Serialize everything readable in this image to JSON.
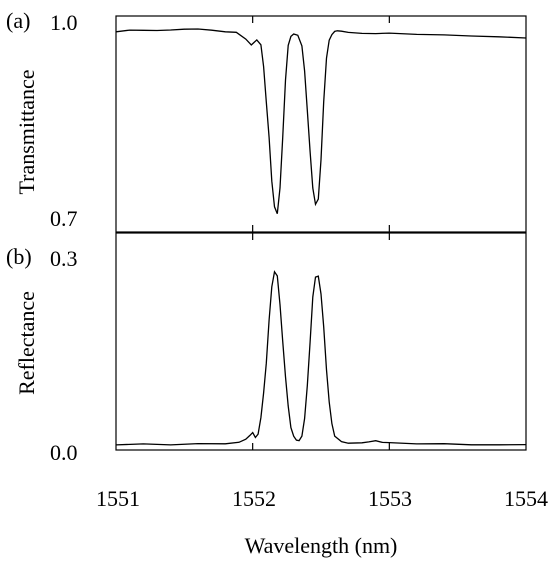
{
  "chart_data": [
    {
      "type": "line",
      "panel_label": "(a)",
      "ylabel": "Transmittance",
      "xlim": [
        1551,
        1554
      ],
      "ylim": [
        0.7,
        1.0
      ],
      "yticks": [
        "0.7",
        "1.0"
      ],
      "xticks": [
        1552,
        1553
      ],
      "line_color": "#000000",
      "grid": false,
      "series": [
        {
          "x": [
            1551.0,
            1551.1,
            1551.2,
            1551.3,
            1551.4,
            1551.5,
            1551.6,
            1551.7,
            1551.8,
            1551.88,
            1551.95,
            1551.99,
            1552.03,
            1552.06,
            1552.08,
            1552.1,
            1552.12,
            1552.14,
            1552.16,
            1552.18,
            1552.2,
            1552.22,
            1552.24,
            1552.26,
            1552.28,
            1552.3,
            1552.33,
            1552.36,
            1552.38,
            1552.4,
            1552.42,
            1552.44,
            1552.46,
            1552.48,
            1552.5,
            1552.52,
            1552.54,
            1552.56,
            1552.58,
            1552.6,
            1552.62,
            1552.65,
            1552.7,
            1552.8,
            1552.9,
            1553.0,
            1553.2,
            1553.4,
            1553.6,
            1553.8,
            1554.0
          ],
          "y": [
            0.978,
            0.979,
            0.98,
            0.979,
            0.98,
            0.981,
            0.981,
            0.98,
            0.979,
            0.978,
            0.968,
            0.96,
            0.968,
            0.96,
            0.93,
            0.88,
            0.83,
            0.77,
            0.734,
            0.725,
            0.76,
            0.83,
            0.91,
            0.96,
            0.973,
            0.976,
            0.974,
            0.96,
            0.925,
            0.87,
            0.81,
            0.76,
            0.738,
            0.745,
            0.8,
            0.88,
            0.94,
            0.965,
            0.975,
            0.979,
            0.98,
            0.979,
            0.978,
            0.977,
            0.976,
            0.975,
            0.974,
            0.973,
            0.972,
            0.971,
            0.969
          ]
        }
      ]
    },
    {
      "type": "line",
      "panel_label": "(b)",
      "ylabel": "Reflectance",
      "xlabel": "Wavelength (nm)",
      "xlim": [
        1551,
        1554
      ],
      "ylim": [
        0.0,
        0.3
      ],
      "yticks": [
        "0.0",
        "0.3"
      ],
      "xticks": [
        "1551",
        "1552",
        "1553",
        "1554"
      ],
      "line_color": "#000000",
      "grid": false,
      "series": [
        {
          "x": [
            1551.0,
            1551.2,
            1551.4,
            1551.6,
            1551.8,
            1551.9,
            1551.95,
            1551.98,
            1552.0,
            1552.02,
            1552.04,
            1552.06,
            1552.08,
            1552.1,
            1552.12,
            1552.14,
            1552.16,
            1552.18,
            1552.2,
            1552.22,
            1552.24,
            1552.26,
            1552.28,
            1552.3,
            1552.32,
            1552.34,
            1552.36,
            1552.38,
            1552.4,
            1552.42,
            1552.44,
            1552.46,
            1552.48,
            1552.5,
            1552.52,
            1552.54,
            1552.56,
            1552.58,
            1552.6,
            1552.65,
            1552.7,
            1552.8,
            1552.85,
            1552.9,
            1552.95,
            1553.0,
            1553.2,
            1553.4,
            1553.6,
            1553.8,
            1554.0
          ],
          "y": [
            0.007,
            0.007,
            0.007,
            0.008,
            0.008,
            0.01,
            0.014,
            0.02,
            0.025,
            0.018,
            0.022,
            0.045,
            0.08,
            0.12,
            0.18,
            0.225,
            0.245,
            0.24,
            0.2,
            0.15,
            0.1,
            0.06,
            0.03,
            0.02,
            0.015,
            0.014,
            0.02,
            0.045,
            0.09,
            0.15,
            0.21,
            0.238,
            0.24,
            0.215,
            0.17,
            0.11,
            0.065,
            0.035,
            0.02,
            0.012,
            0.01,
            0.01,
            0.012,
            0.014,
            0.011,
            0.009,
            0.008,
            0.008,
            0.007,
            0.007,
            0.007
          ]
        }
      ]
    }
  ]
}
